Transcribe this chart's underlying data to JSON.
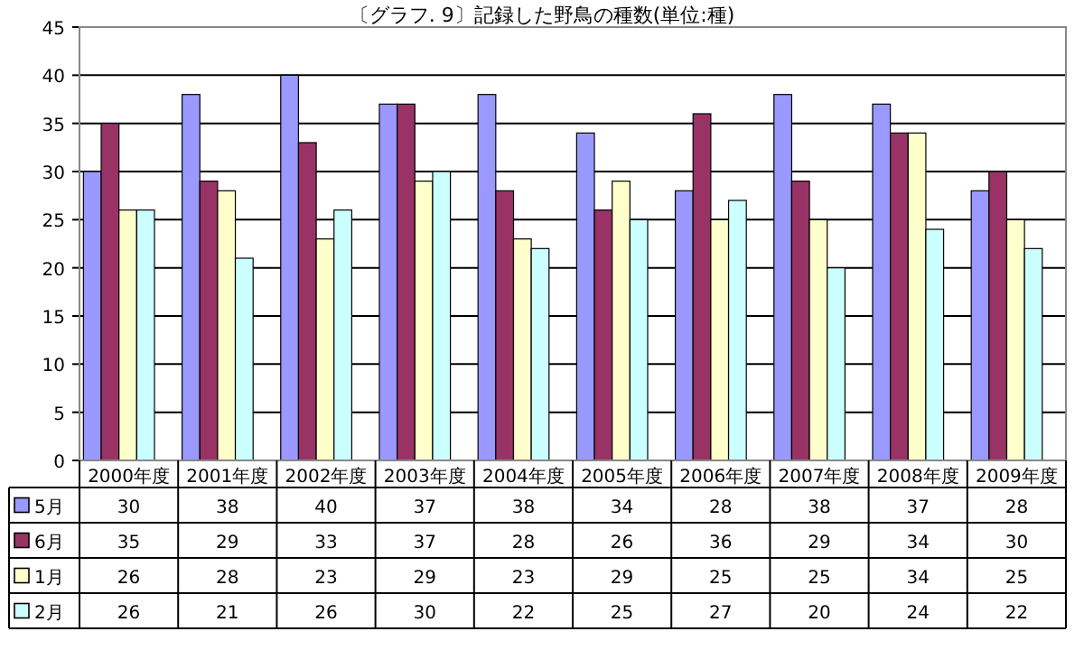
{
  "chart_data": {
    "type": "bar",
    "title": "〔グラフ. 9〕記録した野鳥の種数(単位:種)",
    "categories": [
      "2000年度",
      "2001年度",
      "2002年度",
      "2003年度",
      "2004年度",
      "2005年度",
      "2006年度",
      "2007年度",
      "2008年度",
      "2009年度"
    ],
    "series": [
      {
        "name": "5月",
        "color": "#9999ff",
        "values": [
          30,
          38,
          40,
          37,
          38,
          34,
          28,
          38,
          37,
          28
        ]
      },
      {
        "name": "6月",
        "color": "#993366",
        "values": [
          35,
          29,
          33,
          37,
          28,
          26,
          36,
          29,
          34,
          30
        ]
      },
      {
        "name": "1月",
        "color": "#ffffcc",
        "values": [
          26,
          28,
          23,
          29,
          23,
          29,
          25,
          25,
          34,
          25
        ]
      },
      {
        "name": "2月",
        "color": "#ccffff",
        "values": [
          26,
          21,
          26,
          30,
          22,
          25,
          27,
          20,
          24,
          22
        ]
      }
    ],
    "ylim": [
      0,
      45
    ],
    "yticks": [
      0,
      5,
      10,
      15,
      20,
      25,
      30,
      35,
      40,
      45
    ],
    "grid": "y",
    "data_labels": true,
    "legend": "bottom"
  }
}
